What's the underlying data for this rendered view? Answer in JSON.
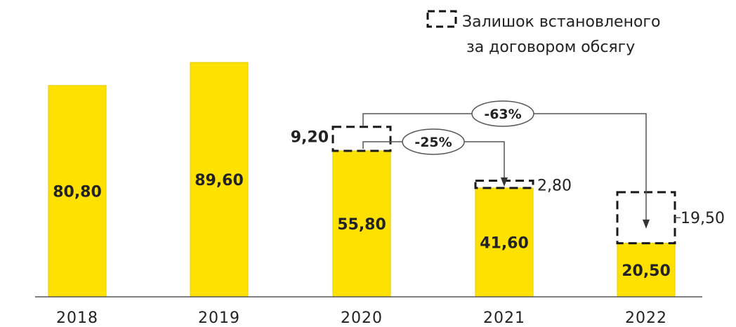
{
  "chart_data": {
    "type": "bar",
    "categories": [
      "2018",
      "2019",
      "2020",
      "2021",
      "2022"
    ],
    "values": [
      80.8,
      89.6,
      55.8,
      41.6,
      20.5
    ],
    "value_labels": [
      "80,80",
      "89,60",
      "55,80",
      "41,60",
      "20,50"
    ],
    "remainder": [
      {
        "category": "2020",
        "value": 9.2,
        "label": "9,20"
      },
      {
        "category": "2021",
        "value": 2.8,
        "label": "2,80"
      },
      {
        "category": "2022",
        "value": 19.5,
        "label": "19,50"
      }
    ],
    "changes": [
      {
        "from": "2020",
        "to": "2021",
        "label": "-25%"
      },
      {
        "from": "2020",
        "to": "2022",
        "label": "-63%"
      }
    ],
    "legend": {
      "label_line1": "Залишок встановленого",
      "label_line2": "за договором обсягу",
      "placement": "top-right"
    },
    "ylim": [
      0,
      89.6
    ],
    "grid": false,
    "colors": {
      "bar": "#ffe100",
      "outline": "#1a1a1a",
      "text": "#222222"
    }
  }
}
